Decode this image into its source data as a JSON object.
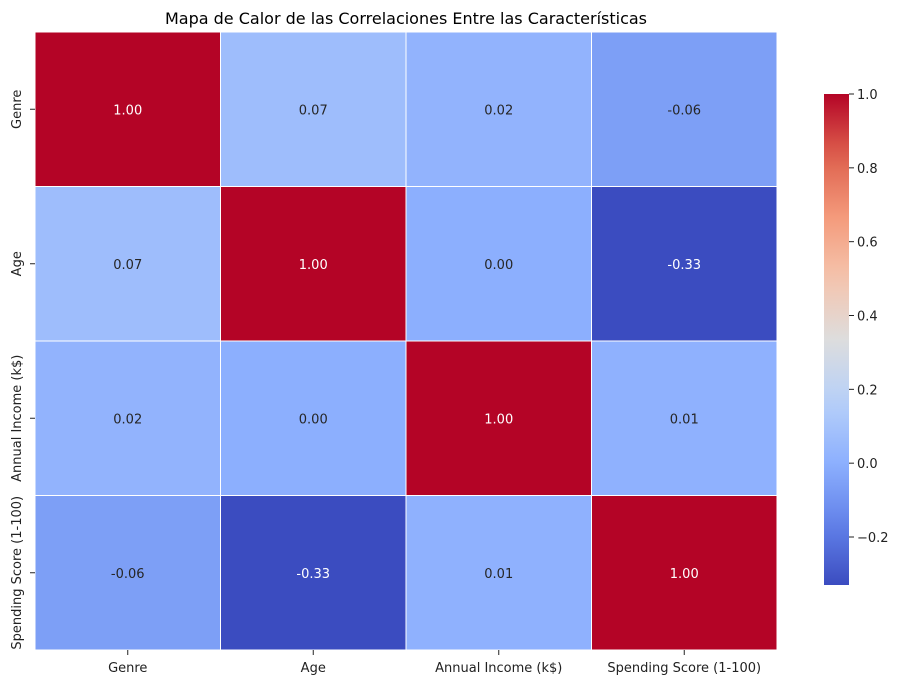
{
  "chart_data": {
    "type": "heatmap",
    "title": "Mapa de Calor de las Correlaciones Entre las Características",
    "row_labels": [
      "Genre",
      "Age",
      "Annual Income (k$)",
      "Spending Score (1-100)"
    ],
    "col_labels": [
      "Genre",
      "Age",
      "Annual Income (k$)",
      "Spending Score (1-100)"
    ],
    "values": [
      [
        1.0,
        0.07,
        0.02,
        -0.06
      ],
      [
        0.07,
        1.0,
        0.0,
        -0.33
      ],
      [
        0.02,
        0.0,
        1.0,
        0.01
      ],
      [
        -0.06,
        -0.33,
        0.01,
        1.0
      ]
    ],
    "value_labels": [
      [
        "1.00",
        "0.07",
        "0.02",
        "-0.06"
      ],
      [
        "0.07",
        "1.00",
        "0.00",
        "-0.33"
      ],
      [
        "0.02",
        "0.00",
        "1.00",
        "0.01"
      ],
      [
        "-0.06",
        "-0.33",
        "0.01",
        "1.00"
      ]
    ],
    "colormap": "coolwarm",
    "colorbar": {
      "vmin": -0.33,
      "vmax": 1.0,
      "ticks": [
        -0.2,
        0.0,
        0.2,
        0.4,
        0.6,
        0.8,
        1.0
      ],
      "tick_labels": [
        "−0.2",
        "0.0",
        "0.2",
        "0.4",
        "0.6",
        "0.8",
        "1.0"
      ]
    }
  }
}
